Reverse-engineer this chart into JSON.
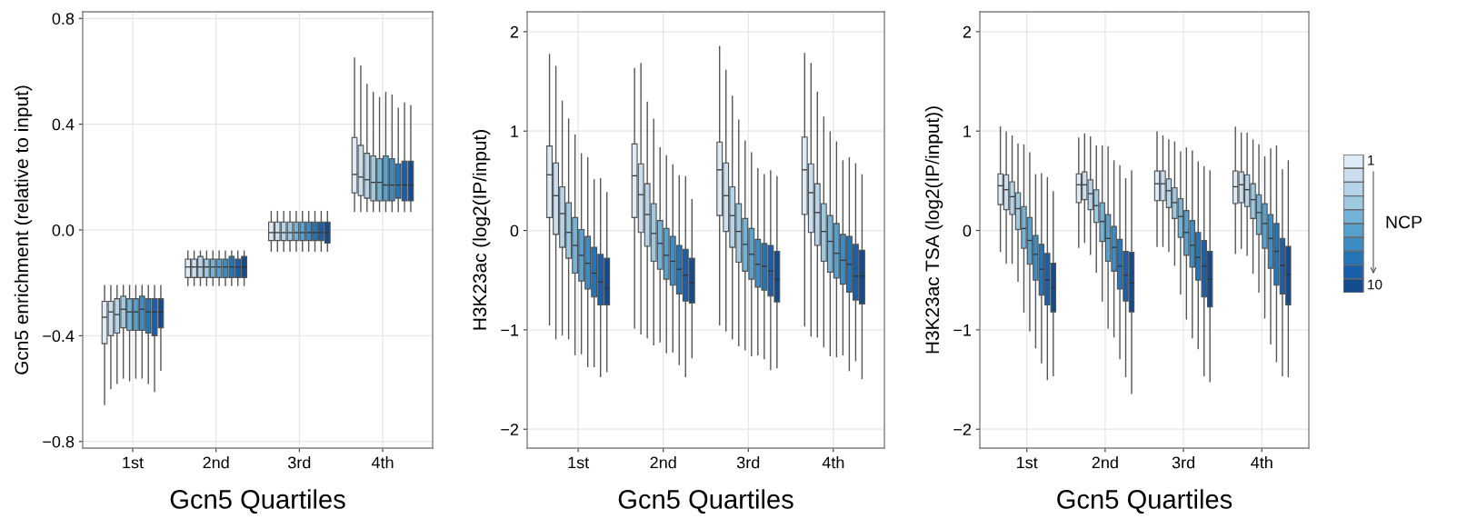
{
  "chart_data": [
    {
      "type": "box",
      "xlabel": "Gcn5 Quartiles",
      "ylabel": "Gcn5 enrichment (relative to input)",
      "categories": [
        "1st",
        "2nd",
        "3rd",
        "4th"
      ],
      "ylim": [
        -0.825,
        0.825
      ],
      "yticks": [
        {
          "value": -0.8,
          "label": "−0.8"
        },
        {
          "value": -0.4,
          "label": "−0.4"
        },
        {
          "value": 0.0,
          "label": "0.0"
        },
        {
          "value": 0.4,
          "label": "0.4"
        },
        {
          "value": 0.8,
          "label": "0.8"
        }
      ],
      "grid": true,
      "series": [
        {
          "color": "#deebf7",
          "boxes": [
            {
              "low": -0.66,
              "q1": -0.43,
              "median": -0.33,
              "q3": -0.27,
              "high": -0.21
            },
            {
              "low": -0.21,
              "q1": -0.18,
              "median": -0.14,
              "q3": -0.11,
              "high": -0.08
            },
            {
              "low": -0.08,
              "q1": -0.04,
              "median": -0.01,
              "q3": 0.03,
              "high": 0.07
            },
            {
              "low": 0.07,
              "q1": 0.14,
              "median": 0.21,
              "q3": 0.35,
              "high": 0.65
            }
          ]
        },
        {
          "color": "#cbdef0",
          "boxes": [
            {
              "low": -0.6,
              "q1": -0.4,
              "median": -0.31,
              "q3": -0.27,
              "high": -0.21
            },
            {
              "low": -0.21,
              "q1": -0.18,
              "median": -0.14,
              "q3": -0.11,
              "high": -0.08
            },
            {
              "low": -0.08,
              "q1": -0.04,
              "median": -0.01,
              "q3": 0.03,
              "high": 0.07
            },
            {
              "low": 0.07,
              "q1": 0.13,
              "median": 0.2,
              "q3": 0.32,
              "high": 0.62
            }
          ]
        },
        {
          "color": "#b5d4e9",
          "boxes": [
            {
              "low": -0.58,
              "q1": -0.39,
              "median": -0.32,
              "q3": -0.26,
              "high": -0.21
            },
            {
              "low": -0.21,
              "q1": -0.18,
              "median": -0.14,
              "q3": -0.1,
              "high": -0.08
            },
            {
              "low": -0.08,
              "q1": -0.04,
              "median": -0.01,
              "q3": 0.03,
              "high": 0.07
            },
            {
              "low": 0.07,
              "q1": 0.12,
              "median": 0.19,
              "q3": 0.29,
              "high": 0.55
            }
          ]
        },
        {
          "color": "#9ecae1",
          "boxes": [
            {
              "low": -0.56,
              "q1": -0.37,
              "median": -0.3,
              "q3": -0.25,
              "high": -0.21
            },
            {
              "low": -0.21,
              "q1": -0.18,
              "median": -0.14,
              "q3": -0.11,
              "high": -0.08
            },
            {
              "low": -0.08,
              "q1": -0.04,
              "median": -0.01,
              "q3": 0.03,
              "high": 0.07
            },
            {
              "low": 0.07,
              "q1": 0.11,
              "median": 0.18,
              "q3": 0.28,
              "high": 0.52
            }
          ]
        },
        {
          "color": "#74b3d8",
          "boxes": [
            {
              "low": -0.57,
              "q1": -0.38,
              "median": -0.31,
              "q3": -0.26,
              "high": -0.21
            },
            {
              "low": -0.21,
              "q1": -0.18,
              "median": -0.14,
              "q3": -0.11,
              "high": -0.08
            },
            {
              "low": -0.08,
              "q1": -0.04,
              "median": -0.01,
              "q3": 0.03,
              "high": 0.07
            },
            {
              "low": 0.07,
              "q1": 0.11,
              "median": 0.18,
              "q3": 0.27,
              "high": 0.5
            }
          ]
        },
        {
          "color": "#58a1cf",
          "boxes": [
            {
              "low": -0.56,
              "q1": -0.38,
              "median": -0.31,
              "q3": -0.26,
              "high": -0.21
            },
            {
              "low": -0.21,
              "q1": -0.18,
              "median": -0.14,
              "q3": -0.11,
              "high": -0.08
            },
            {
              "low": -0.08,
              "q1": -0.04,
              "median": -0.01,
              "q3": 0.03,
              "high": 0.07
            },
            {
              "low": 0.07,
              "q1": 0.11,
              "median": 0.17,
              "q3": 0.28,
              "high": 0.52
            }
          ]
        },
        {
          "color": "#3d8dc4",
          "boxes": [
            {
              "low": -0.56,
              "q1": -0.38,
              "median": -0.3,
              "q3": -0.25,
              "high": -0.21
            },
            {
              "low": -0.21,
              "q1": -0.18,
              "median": -0.14,
              "q3": -0.11,
              "high": -0.08
            },
            {
              "low": -0.08,
              "q1": -0.04,
              "median": -0.01,
              "q3": 0.03,
              "high": 0.07
            },
            {
              "low": 0.07,
              "q1": 0.11,
              "median": 0.17,
              "q3": 0.27,
              "high": 0.51
            }
          ]
        },
        {
          "color": "#2375b8",
          "boxes": [
            {
              "low": -0.58,
              "q1": -0.39,
              "median": -0.31,
              "q3": -0.26,
              "high": -0.21
            },
            {
              "low": -0.21,
              "q1": -0.18,
              "median": -0.14,
              "q3": -0.1,
              "high": -0.08
            },
            {
              "low": -0.08,
              "q1": -0.04,
              "median": -0.01,
              "q3": 0.03,
              "high": 0.07
            },
            {
              "low": 0.07,
              "q1": 0.12,
              "median": 0.17,
              "q3": 0.25,
              "high": 0.46
            }
          ]
        },
        {
          "color": "#1a5fab",
          "boxes": [
            {
              "low": -0.61,
              "q1": -0.4,
              "median": -0.31,
              "q3": -0.26,
              "high": -0.21
            },
            {
              "low": -0.21,
              "q1": -0.18,
              "median": -0.14,
              "q3": -0.11,
              "high": -0.08
            },
            {
              "low": -0.08,
              "q1": -0.04,
              "median": -0.01,
              "q3": 0.03,
              "high": 0.07
            },
            {
              "low": 0.07,
              "q1": 0.11,
              "median": 0.17,
              "q3": 0.26,
              "high": 0.48
            }
          ]
        },
        {
          "color": "#134b8f",
          "boxes": [
            {
              "low": -0.53,
              "q1": -0.37,
              "median": -0.31,
              "q3": -0.26,
              "high": -0.21
            },
            {
              "low": -0.21,
              "q1": -0.18,
              "median": -0.14,
              "q3": -0.1,
              "high": -0.08
            },
            {
              "low": -0.08,
              "q1": -0.05,
              "median": -0.01,
              "q3": 0.03,
              "high": 0.07
            },
            {
              "low": 0.07,
              "q1": 0.11,
              "median": 0.17,
              "q3": 0.26,
              "high": 0.47
            }
          ]
        }
      ]
    },
    {
      "type": "box",
      "xlabel": "Gcn5 Quartiles",
      "ylabel": "H3K23ac (log2(IP/input)",
      "categories": [
        "1st",
        "2nd",
        "3rd",
        "4th"
      ],
      "ylim": [
        -2.19,
        2.2
      ],
      "yticks": [
        {
          "value": -2,
          "label": "−2"
        },
        {
          "value": -1,
          "label": "−1"
        },
        0,
        1,
        2
      ],
      "grid": true,
      "series": [
        {
          "color": "#deebf7",
          "boxes": [
            {
              "low": -0.95,
              "q1": 0.13,
              "median": 0.56,
              "q3": 0.85,
              "high": 1.77
            },
            {
              "low": -0.98,
              "q1": 0.13,
              "median": 0.55,
              "q3": 0.87,
              "high": 1.63
            },
            {
              "low": -0.95,
              "q1": 0.15,
              "median": 0.61,
              "q3": 0.89,
              "high": 1.85
            },
            {
              "low": -0.96,
              "q1": 0.16,
              "median": 0.61,
              "q3": 0.94,
              "high": 1.78
            }
          ]
        },
        {
          "color": "#cbdef0",
          "boxes": [
            {
              "low": -1.09,
              "q1": -0.04,
              "median": 0.35,
              "q3": 0.68,
              "high": 1.65
            },
            {
              "low": -1.04,
              "q1": -0.02,
              "median": 0.36,
              "q3": 0.67,
              "high": 1.68
            },
            {
              "low": -1.01,
              "q1": -0.01,
              "median": 0.35,
              "q3": 0.68,
              "high": 1.61
            },
            {
              "low": -1.06,
              "q1": -0.02,
              "median": 0.38,
              "q3": 0.67,
              "high": 1.68
            }
          ]
        },
        {
          "color": "#b5d4e9",
          "boxes": [
            {
              "low": -1.05,
              "q1": -0.17,
              "median": 0.17,
              "q3": 0.44,
              "high": 1.3
            },
            {
              "low": -1.08,
              "q1": -0.16,
              "median": 0.16,
              "q3": 0.47,
              "high": 1.29
            },
            {
              "low": -1.09,
              "q1": -0.17,
              "median": 0.15,
              "q3": 0.44,
              "high": 1.35
            },
            {
              "low": -1.07,
              "q1": -0.15,
              "median": 0.18,
              "q3": 0.47,
              "high": 1.39
            }
          ]
        },
        {
          "color": "#9ecae1",
          "boxes": [
            {
              "low": -1.09,
              "q1": -0.28,
              "median": -0.02,
              "q3": 0.28,
              "high": 1.12
            },
            {
              "low": -1.15,
              "q1": -0.31,
              "median": -0.03,
              "q3": 0.27,
              "high": 1.12
            },
            {
              "low": -1.16,
              "q1": -0.32,
              "median": -0.01,
              "q3": 0.27,
              "high": 1.11
            },
            {
              "low": -1.17,
              "q1": -0.31,
              "median": -0.01,
              "q3": 0.27,
              "high": 1.14
            }
          ]
        },
        {
          "color": "#74b3d8",
          "boxes": [
            {
              "low": -1.25,
              "q1": -0.43,
              "median": -0.15,
              "q3": 0.13,
              "high": 0.96
            },
            {
              "low": -1.12,
              "q1": -0.39,
              "median": -0.13,
              "q3": 0.1,
              "high": 0.83
            },
            {
              "low": -1.2,
              "q1": -0.41,
              "median": -0.14,
              "q3": 0.12,
              "high": 0.9
            },
            {
              "low": -1.26,
              "q1": -0.42,
              "median": -0.11,
              "q3": 0.15,
              "high": 0.99
            }
          ]
        },
        {
          "color": "#58a1cf",
          "boxes": [
            {
              "low": -1.24,
              "q1": -0.51,
              "median": -0.25,
              "q3": 0.01,
              "high": 0.77
            },
            {
              "low": -1.23,
              "q1": -0.49,
              "median": -0.25,
              "q3": 0.02,
              "high": 0.75
            },
            {
              "low": -1.26,
              "q1": -0.49,
              "median": -0.24,
              "q3": 0.02,
              "high": 0.78
            },
            {
              "low": -1.27,
              "q1": -0.48,
              "median": -0.23,
              "q3": 0.07,
              "high": 0.89
            }
          ]
        },
        {
          "color": "#3d8dc4",
          "boxes": [
            {
              "low": -1.37,
              "q1": -0.59,
              "median": -0.33,
              "q3": -0.06,
              "high": 0.73
            },
            {
              "low": -1.22,
              "q1": -0.55,
              "median": -0.31,
              "q3": -0.06,
              "high": 0.66
            },
            {
              "low": -1.25,
              "q1": -0.57,
              "median": -0.34,
              "q3": -0.09,
              "high": 0.62
            },
            {
              "low": -1.25,
              "q1": -0.54,
              "median": -0.3,
              "q3": -0.04,
              "high": 0.7
            }
          ]
        },
        {
          "color": "#2375b8",
          "boxes": [
            {
              "low": -1.37,
              "q1": -0.67,
              "median": -0.43,
              "q3": -0.17,
              "high": 0.51
            },
            {
              "low": -1.35,
              "q1": -0.64,
              "median": -0.39,
              "q3": -0.15,
              "high": 0.55
            },
            {
              "low": -1.29,
              "q1": -0.6,
              "median": -0.36,
              "q3": -0.13,
              "high": 0.56
            },
            {
              "low": -1.41,
              "q1": -0.62,
              "median": -0.34,
              "q3": -0.06,
              "high": 0.73
            }
          ]
        },
        {
          "color": "#1a5fab",
          "boxes": [
            {
              "low": -1.47,
              "q1": -0.75,
              "median": -0.52,
              "q3": -0.24,
              "high": 0.52
            },
            {
              "low": -1.47,
              "q1": -0.71,
              "median": -0.45,
              "q3": -0.19,
              "high": 0.54
            },
            {
              "low": -1.4,
              "q1": -0.66,
              "median": -0.41,
              "q3": -0.15,
              "high": 0.6
            },
            {
              "low": -1.31,
              "q1": -0.7,
              "median": -0.46,
              "q3": -0.14,
              "high": 0.67
            }
          ]
        },
        {
          "color": "#134b8f",
          "boxes": [
            {
              "low": -1.42,
              "q1": -0.75,
              "median": -0.58,
              "q3": -0.28,
              "high": 0.38
            },
            {
              "low": -1.28,
              "q1": -0.73,
              "median": -0.53,
              "q3": -0.28,
              "high": 0.31
            },
            {
              "low": -1.38,
              "q1": -0.72,
              "median": -0.49,
              "q3": -0.21,
              "high": 0.54
            },
            {
              "low": -1.49,
              "q1": -0.74,
              "median": -0.46,
              "q3": -0.2,
              "high": 0.56
            }
          ]
        }
      ]
    },
    {
      "type": "box",
      "xlabel": "Gcn5 Quartiles",
      "ylabel": "H3K23ac TSA (log2(IP/input))",
      "categories": [
        "1st",
        "2nd",
        "3rd",
        "4th"
      ],
      "ylim": [
        -2.19,
        2.2
      ],
      "yticks": [
        {
          "value": -2,
          "label": "−2"
        },
        {
          "value": -1,
          "label": "−1"
        },
        0,
        1,
        2
      ],
      "grid": true,
      "legend": "right",
      "legend_title": "NCP",
      "series": [
        {
          "name": "1",
          "color": "#deebf7",
          "boxes": [
            {
              "low": -0.21,
              "q1": 0.26,
              "median": 0.45,
              "q3": 0.57,
              "high": 1.04
            },
            {
              "low": -0.17,
              "q1": 0.28,
              "median": 0.46,
              "q3": 0.57,
              "high": 0.93
            },
            {
              "low": -0.16,
              "q1": 0.3,
              "median": 0.47,
              "q3": 0.6,
              "high": 0.99
            },
            {
              "low": -0.23,
              "q1": 0.27,
              "median": 0.44,
              "q3": 0.6,
              "high": 1.04
            }
          ]
        },
        {
          "color": "#cbdef0",
          "boxes": [
            {
              "low": -0.33,
              "q1": 0.21,
              "median": 0.41,
              "q3": 0.56,
              "high": 0.99
            },
            {
              "low": -0.12,
              "q1": 0.31,
              "median": 0.46,
              "q3": 0.59,
              "high": 0.97
            },
            {
              "low": -0.16,
              "q1": 0.3,
              "median": 0.47,
              "q3": 0.6,
              "high": 0.95
            },
            {
              "low": -0.18,
              "q1": 0.28,
              "median": 0.46,
              "q3": 0.59,
              "high": 0.98
            }
          ]
        },
        {
          "color": "#b5d4e9",
          "boxes": [
            {
              "low": -0.33,
              "q1": 0.16,
              "median": 0.34,
              "q3": 0.49,
              "high": 0.95
            },
            {
              "low": -0.24,
              "q1": 0.21,
              "median": 0.37,
              "q3": 0.51,
              "high": 0.94
            },
            {
              "low": -0.21,
              "q1": 0.23,
              "median": 0.4,
              "q3": 0.52,
              "high": 0.91
            },
            {
              "low": -0.25,
              "q1": 0.24,
              "median": 0.41,
              "q3": 0.56,
              "high": 0.98
            }
          ]
        },
        {
          "color": "#9ecae1",
          "boxes": [
            {
              "low": -0.51,
              "q1": 0.01,
              "median": 0.22,
              "q3": 0.38,
              "high": 0.87
            },
            {
              "low": -0.42,
              "q1": 0.08,
              "median": 0.25,
              "q3": 0.41,
              "high": 0.85
            },
            {
              "low": -0.35,
              "q1": 0.12,
              "median": 0.28,
              "q3": 0.43,
              "high": 0.89
            },
            {
              "low": -0.43,
              "q1": 0.12,
              "median": 0.31,
              "q3": 0.47,
              "high": 0.91
            }
          ]
        },
        {
          "color": "#74b3d8",
          "boxes": [
            {
              "low": -0.82,
              "q1": -0.18,
              "median": 0.02,
              "q3": 0.24,
              "high": 0.86
            },
            {
              "low": -0.71,
              "q1": -0.11,
              "median": 0.09,
              "q3": 0.28,
              "high": 0.85
            },
            {
              "low": -0.64,
              "q1": -0.07,
              "median": 0.14,
              "q3": 0.32,
              "high": 0.79
            },
            {
              "low": -0.62,
              "q1": -0.04,
              "median": 0.18,
              "q3": 0.36,
              "high": 0.86
            }
          ]
        },
        {
          "color": "#58a1cf",
          "boxes": [
            {
              "low": -1.01,
              "q1": -0.34,
              "median": -0.1,
              "q3": 0.13,
              "high": 0.78
            },
            {
              "low": -0.98,
              "q1": -0.31,
              "median": -0.08,
              "q3": 0.16,
              "high": 0.84
            },
            {
              "low": -0.89,
              "q1": -0.25,
              "median": -0.02,
              "q3": 0.2,
              "high": 0.83
            },
            {
              "low": -0.88,
              "q1": -0.18,
              "median": 0.07,
              "q3": 0.27,
              "high": 0.74
            }
          ]
        },
        {
          "color": "#3d8dc4",
          "boxes": [
            {
              "low": -1.18,
              "q1": -0.5,
              "median": -0.24,
              "q3": -0.05,
              "high": 0.56
            },
            {
              "low": -1.07,
              "q1": -0.41,
              "median": -0.17,
              "q3": 0.04,
              "high": 0.7
            },
            {
              "low": -1.08,
              "q1": -0.37,
              "median": -0.15,
              "q3": 0.1,
              "high": 0.8
            },
            {
              "low": -1.14,
              "q1": -0.38,
              "median": -0.08,
              "q3": 0.16,
              "high": 0.82
            }
          ]
        },
        {
          "color": "#2375b8",
          "boxes": [
            {
              "low": -1.33,
              "q1": -0.65,
              "median": -0.39,
              "q3": -0.14,
              "high": 0.57
            },
            {
              "low": -1.29,
              "q1": -0.59,
              "median": -0.36,
              "q3": -0.09,
              "high": 0.65
            },
            {
              "low": -1.19,
              "q1": -0.5,
              "median": -0.27,
              "q3": -0.02,
              "high": 0.69
            },
            {
              "low": -1.32,
              "q1": -0.55,
              "median": -0.21,
              "q3": 0.07,
              "high": 0.85
            }
          ]
        },
        {
          "color": "#1a5fab",
          "boxes": [
            {
              "low": -1.5,
              "q1": -0.75,
              "median": -0.5,
              "q3": -0.23,
              "high": 0.53
            },
            {
              "low": -1.47,
              "q1": -0.71,
              "median": -0.45,
              "q3": -0.21,
              "high": 0.52
            },
            {
              "low": -1.46,
              "q1": -0.67,
              "median": -0.36,
              "q3": -0.1,
              "high": 0.64
            },
            {
              "low": -1.46,
              "q1": -0.64,
              "median": -0.35,
              "q3": -0.08,
              "high": 0.61
            }
          ]
        },
        {
          "name": "10",
          "color": "#134b8f",
          "boxes": [
            {
              "low": -1.46,
              "q1": -0.82,
              "median": -0.58,
              "q3": -0.33,
              "high": 0.39
            },
            {
              "low": -1.64,
              "q1": -0.82,
              "median": -0.53,
              "q3": -0.22,
              "high": 0.6
            },
            {
              "low": -1.52,
              "q1": -0.77,
              "median": -0.49,
              "q3": -0.21,
              "high": 0.6
            },
            {
              "low": -1.47,
              "q1": -0.75,
              "median": -0.44,
              "q3": -0.16,
              "high": 0.7
            }
          ]
        }
      ]
    }
  ]
}
